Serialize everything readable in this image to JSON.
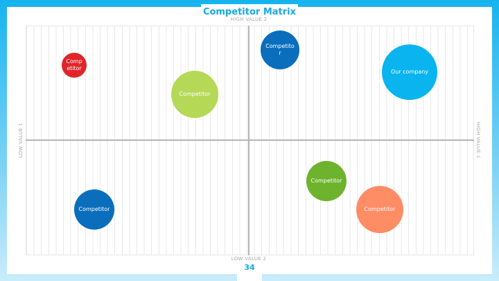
{
  "title": "Competitor Matrix",
  "axes": {
    "top": "HIGH VALUE 2",
    "bottom": "LOW VALUE 2",
    "left": "LOW VALUE 1",
    "right": "HIGH VALUE 1"
  },
  "nodes": [
    {
      "label": "Competitor"
    },
    {
      "label": "Competitor"
    },
    {
      "label": "Competitor"
    },
    {
      "label": "Our company"
    },
    {
      "label": "Competitor"
    },
    {
      "label": "Competitor"
    },
    {
      "label": "Competitor"
    }
  ],
  "page_number": "34"
}
